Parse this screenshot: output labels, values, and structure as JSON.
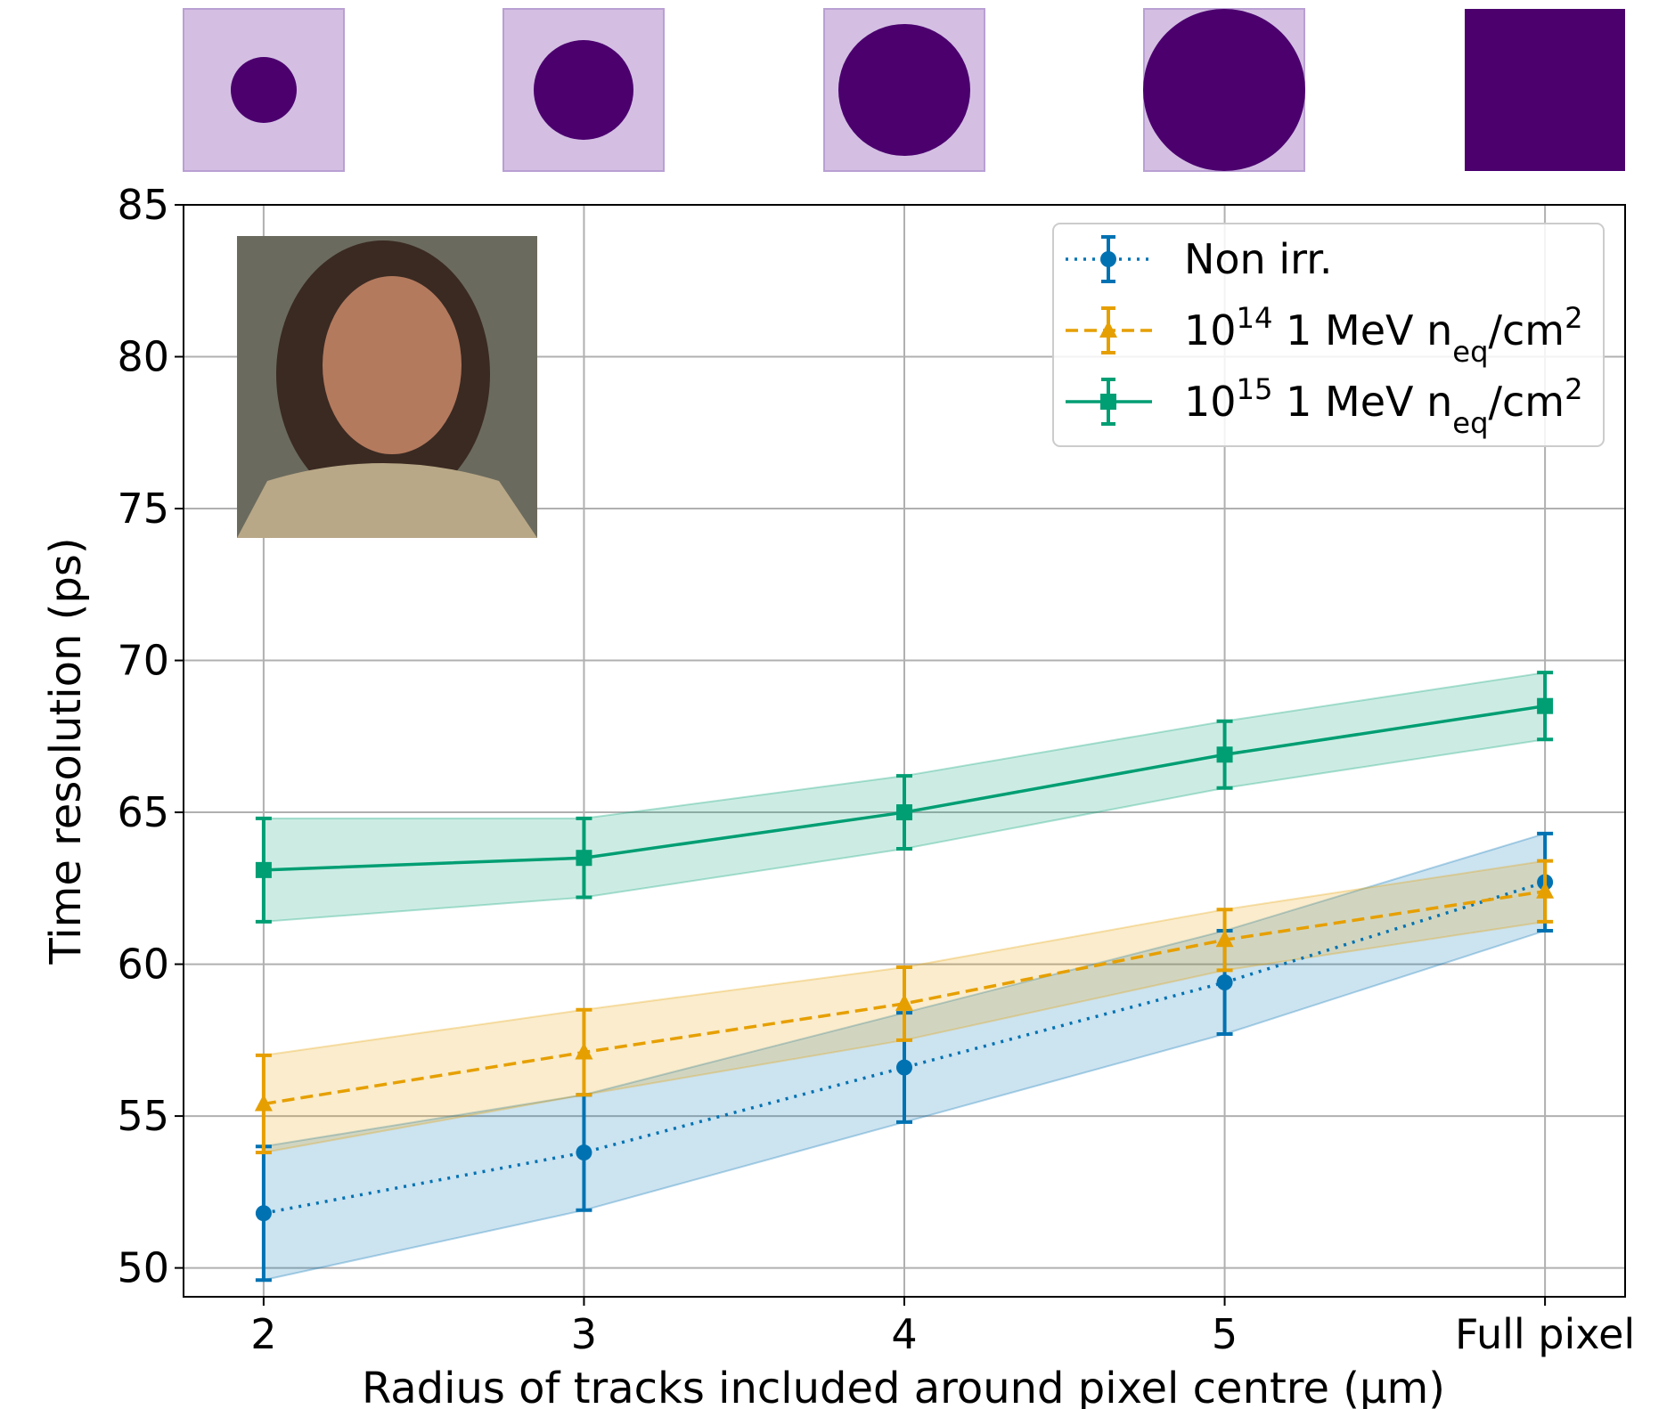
{
  "chart_data": {
    "type": "line",
    "xlabel": "Radius of tracks included around pixel centre (μm)",
    "ylabel": "Time resolution (ps)",
    "categories": [
      "2",
      "3",
      "4",
      "5",
      "Full pixel"
    ],
    "ylim": [
      49.05,
      85
    ],
    "yticks": [
      50,
      55,
      60,
      65,
      70,
      75,
      80,
      85
    ],
    "grid": true,
    "legend": "upper right",
    "series": [
      {
        "name": "Non irr.",
        "color": "#0072b2",
        "linestyle": "dotted",
        "marker": "circle",
        "values": [
          51.8,
          53.8,
          56.6,
          59.4,
          62.7
        ],
        "errors": [
          2.2,
          1.9,
          1.8,
          1.7,
          1.6
        ]
      },
      {
        "name": "10^{14} 1 MeV n_{eq}/cm^{2}",
        "color": "#e69f00",
        "linestyle": "dashed",
        "marker": "triangle",
        "values": [
          55.4,
          57.1,
          58.7,
          60.8,
          62.4
        ],
        "errors": [
          1.6,
          1.4,
          1.2,
          1.0,
          1.0
        ]
      },
      {
        "name": "10^{15} 1 MeV n_{eq}/cm^{2}",
        "color": "#009e73",
        "linestyle": "solid",
        "marker": "square",
        "values": [
          63.1,
          63.5,
          65.0,
          66.9,
          68.5
        ],
        "errors": [
          1.7,
          1.3,
          1.2,
          1.1,
          1.1
        ]
      }
    ]
  }
}
